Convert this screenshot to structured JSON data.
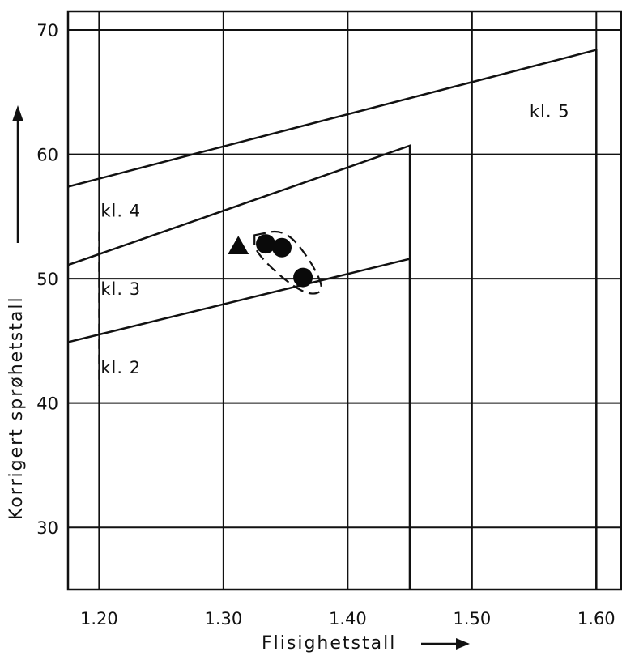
{
  "chart_data": {
    "type": "scatter",
    "title": "",
    "xlabel": "Flisighetstall",
    "ylabel": "Korrigert sprøhetstall",
    "xlim": [
      1.175,
      1.62
    ],
    "ylim": [
      25,
      71.5
    ],
    "x_ticks": [
      "1.20",
      "1.30",
      "1.40",
      "1.50",
      "1.60"
    ],
    "y_ticks": [
      "30",
      "40",
      "50",
      "60",
      "70"
    ],
    "x_tick_values": [
      1.2,
      1.3,
      1.4,
      1.5,
      1.6
    ],
    "y_tick_values": [
      30,
      40,
      50,
      60,
      70
    ],
    "grid": true,
    "class_labels": [
      {
        "text": "kl. 5",
        "x": 1.545,
        "y": 63
      },
      {
        "text": "kl. 4",
        "x": 1.2,
        "y": 55
      },
      {
        "text": "kl. 3",
        "x": 1.2,
        "y": 48.7
      },
      {
        "text": "kl. 2",
        "x": 1.2,
        "y": 42.4
      }
    ],
    "boundaries": [
      {
        "name": "kl.2/kl.3",
        "points": [
          [
            1.175,
            44.9
          ],
          [
            1.45,
            51.6
          ]
        ],
        "drop_to": 25
      },
      {
        "name": "kl.3/kl.4",
        "points": [
          [
            1.175,
            51.1
          ],
          [
            1.45,
            60.7
          ]
        ],
        "drop_to": 25
      },
      {
        "name": "kl.4/kl.5",
        "points": [
          [
            1.175,
            57.4
          ],
          [
            1.6,
            68.4
          ]
        ],
        "drop_to": 25
      }
    ],
    "series": [
      {
        "marker": "circle",
        "points": [
          [
            1.334,
            52.8
          ],
          [
            1.347,
            52.5
          ],
          [
            1.364,
            50.1
          ]
        ]
      },
      {
        "marker": "triangle",
        "points": [
          [
            1.312,
            52.6
          ]
        ]
      }
    ],
    "dashed_enclosure": [
      [
        1.325,
        53.5
      ],
      [
        1.35,
        54.0
      ],
      [
        1.372,
        51.2
      ],
      [
        1.382,
        48.8
      ],
      [
        1.362,
        48.8
      ],
      [
        1.325,
        52.1
      ]
    ],
    "dashed_vertical": {
      "x": 1.2,
      "from": 53.8,
      "to": 41.4
    }
  }
}
